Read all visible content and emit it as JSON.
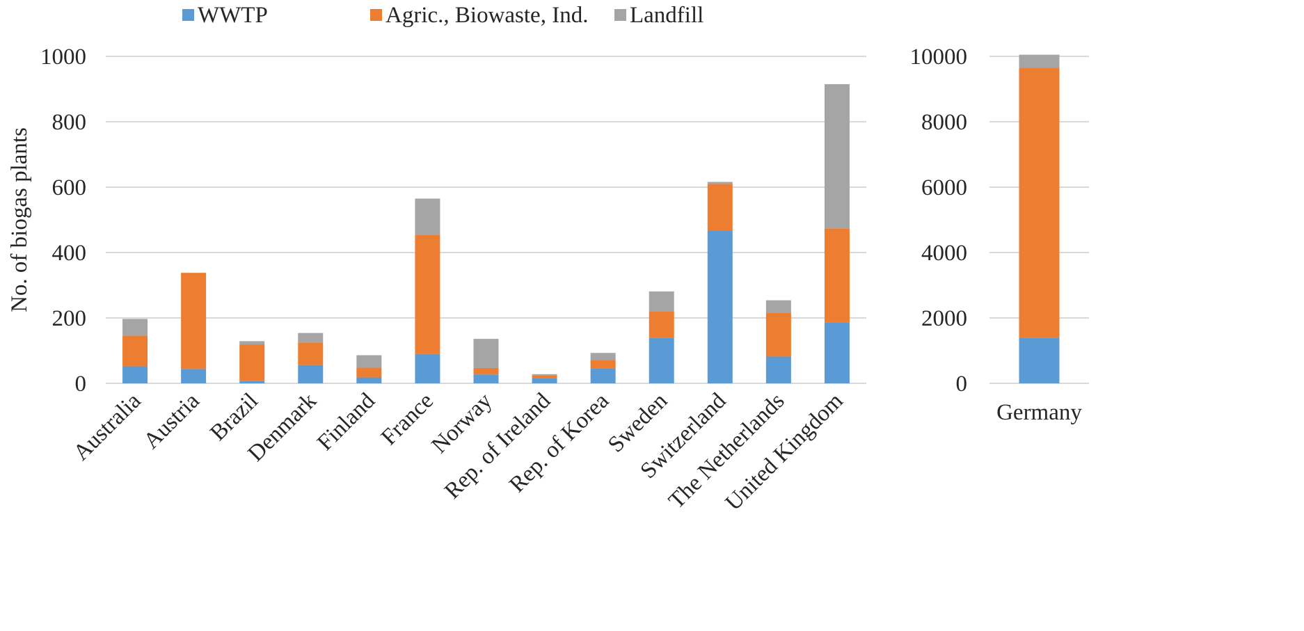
{
  "chart_data": [
    {
      "type": "bar",
      "stacked": true,
      "title": "",
      "xlabel": "",
      "ylabel": "No. of biogas plants",
      "ylim": [
        0,
        1000
      ],
      "yticks": [
        0,
        200,
        400,
        600,
        800,
        1000
      ],
      "grid": true,
      "legend_position": "top",
      "categories": [
        "Australia",
        "Austria",
        "Brazil",
        "Denmark",
        "Finland",
        "France",
        "Norway",
        "Rep. of Ireland",
        "Rep. of Korea",
        "Sweden",
        "Switzerland",
        "The Netherlands",
        "United Kingdom"
      ],
      "series": [
        {
          "name": "WWTP",
          "color": "#5b9bd5",
          "values": [
            52,
            44,
            7,
            56,
            18,
            90,
            27,
            15,
            46,
            140,
            468,
            82,
            186
          ]
        },
        {
          "name": "Agric., Biowaste, Ind.",
          "color": "#ed7d31",
          "values": [
            94,
            294,
            112,
            69,
            30,
            364,
            20,
            10,
            26,
            80,
            142,
            133,
            288
          ]
        },
        {
          "name": "Landfill",
          "color": "#a5a5a5",
          "values": [
            51,
            0,
            10,
            29,
            38,
            111,
            89,
            3,
            21,
            61,
            6,
            39,
            441
          ]
        }
      ]
    },
    {
      "type": "bar",
      "stacked": true,
      "title": "",
      "xlabel": "",
      "ylabel": "",
      "ylim": [
        0,
        10000
      ],
      "yticks": [
        0,
        2000,
        4000,
        6000,
        8000,
        10000
      ],
      "grid": true,
      "categories": [
        "Germany"
      ],
      "series": [
        {
          "name": "WWTP",
          "color": "#5b9bd5",
          "values": [
            1400
          ]
        },
        {
          "name": "Agric., Biowaste, Ind.",
          "color": "#ed7d31",
          "values": [
            8250
          ]
        },
        {
          "name": "Landfill",
          "color": "#a5a5a5",
          "values": [
            400
          ]
        }
      ]
    }
  ]
}
